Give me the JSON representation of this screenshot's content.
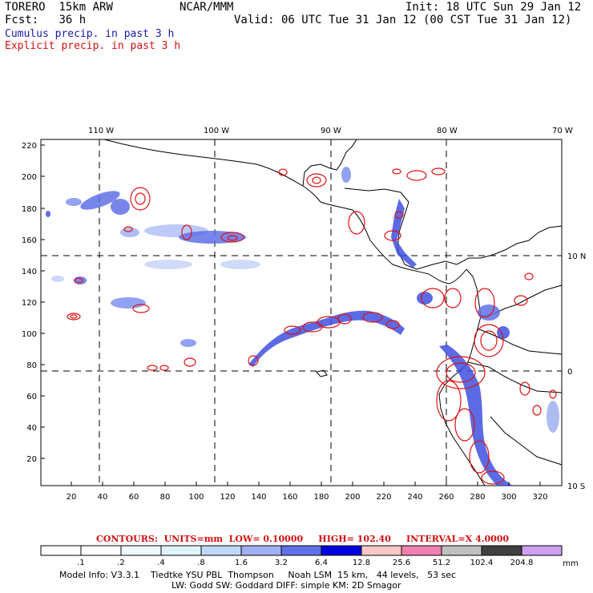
{
  "header": {
    "run_name": "TORERO",
    "resolution": "15km ARW",
    "org": "NCAR/MMM",
    "init": "Init: 18 UTC Sun 29 Jan 12",
    "fcst_label": "Fcst:",
    "fcst_value": "36 h",
    "valid": "Valid: 06 UTC Tue 31 Jan 12 (00 CST Tue 31 Jan 12)",
    "legend_cumulus": "Cumulus precip. in past 3 h",
    "legend_explicit": "Explicit precip. in past 3 h"
  },
  "map": {
    "top_lon_labels": [
      "110 W",
      "100 W",
      "90 W",
      "80 W",
      "70 W"
    ],
    "right_lat_labels": [
      "10 N",
      "0",
      "10 S"
    ],
    "y_ticks": [
      "220",
      "200",
      "180",
      "160",
      "140",
      "120",
      "100",
      "80",
      "60",
      "40",
      "20"
    ],
    "x_ticks": [
      "20",
      "40",
      "60",
      "80",
      "100",
      "120",
      "140",
      "160",
      "180",
      "200",
      "220",
      "240",
      "260",
      "280",
      "300",
      "320"
    ],
    "colors": {
      "cumulus": "#2a2ae0",
      "cumulus_light": "#b8c8f8",
      "explicit": "#e01010",
      "coast": "#000000",
      "grid": "#000000"
    }
  },
  "contours": {
    "text_prefix": "CONTOURS:",
    "units": "UNITS=mm",
    "low": "LOW= 0.10000",
    "high": "HIGH= 102.40",
    "interval": "INTERVAL=X 4.0000"
  },
  "colorbar": {
    "labels": [
      ".1",
      ".2",
      ".4",
      ".8",
      "1.6",
      "3.2",
      "6.4",
      "12.8",
      "25.6",
      "51.2",
      "102.4",
      "204.8"
    ],
    "units": "mm",
    "colors": [
      "#ffffff",
      "#ffffff",
      "#f0f8ff",
      "#e0f4f8",
      "#c0d8f8",
      "#a0b0f0",
      "#6070e8",
      "#0000e0",
      "#f8c8c8",
      "#f080b0",
      "#c0c0c0",
      "#404040",
      "#d0a0f0"
    ]
  },
  "model_info": {
    "line1": "Model Info: V3.3.1    Tiedtke YSU PBL  Thompson     Noah LSM  15 km,   44 levels,   53 sec",
    "line2": "LW: Godd SW: Goddard DIFF: simple KM: 2D Smagor"
  }
}
